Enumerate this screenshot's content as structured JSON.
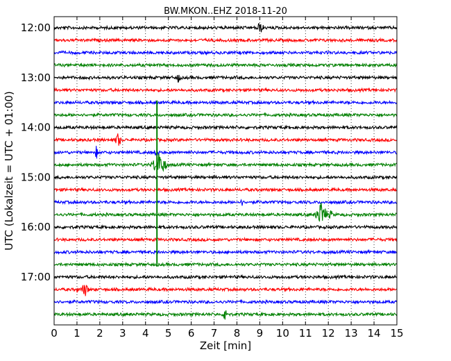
{
  "chart_data": {
    "type": "line",
    "title": "BW.MKON..EHZ 2018-11-20",
    "xlabel": "Zeit  [min]",
    "ylabel": "UTC (Lokalzeit = UTC + 01:00)",
    "xlim": [
      0,
      15
    ],
    "x_ticks": [
      "0",
      "1",
      "2",
      "3",
      "4",
      "5",
      "6",
      "7",
      "8",
      "9",
      "10",
      "11",
      "12",
      "13",
      "14",
      "15"
    ],
    "y_ticks": [
      "12:00",
      "13:00",
      "14:00",
      "15:00",
      "16:00",
      "17:00"
    ],
    "grid": "vertical dotted",
    "trace_colors": [
      "#000000",
      "#ff0000",
      "#0000ff",
      "#008000"
    ],
    "trace_start_times": [
      "12:00",
      "12:15",
      "12:30",
      "12:45",
      "13:00",
      "13:15",
      "13:30",
      "13:45",
      "14:00",
      "14:15",
      "14:30",
      "14:45",
      "15:00",
      "15:15",
      "15:30",
      "15:45",
      "16:00",
      "16:15",
      "16:30",
      "16:45",
      "17:00",
      "17:15",
      "17:30",
      "17:45"
    ],
    "events": [
      {
        "row": 0,
        "minute": 9.0,
        "amp": 7,
        "dur": 0.2
      },
      {
        "row": 4,
        "minute": 5.45,
        "amp": 7,
        "dur": 0.1
      },
      {
        "row": 9,
        "minute": 2.8,
        "amp": 10,
        "dur": 0.15
      },
      {
        "row": 10,
        "minute": 1.85,
        "amp": 11,
        "dur": 0.05
      },
      {
        "row": 10,
        "minute": 4.5,
        "amp": 9,
        "dur": 0.1
      },
      {
        "row": 11,
        "minute": 4.6,
        "amp": 15,
        "dur": 0.4
      },
      {
        "row": 14,
        "minute": 8.2,
        "amp": 8,
        "dur": 0.05
      },
      {
        "row": 15,
        "minute": 11.7,
        "amp": 18,
        "dur": 0.3
      },
      {
        "row": 15,
        "minute": 12.1,
        "amp": 6,
        "dur": 0.1
      },
      {
        "row": 21,
        "minute": 1.0,
        "amp": 6,
        "dur": 0.05
      },
      {
        "row": 21,
        "minute": 1.35,
        "amp": 9,
        "dur": 0.2
      },
      {
        "row": 23,
        "minute": 7.5,
        "amp": 16,
        "dur": 0.1
      }
    ],
    "spike": {
      "minute": 4.5,
      "from_row": 6,
      "to_row": 19
    }
  }
}
